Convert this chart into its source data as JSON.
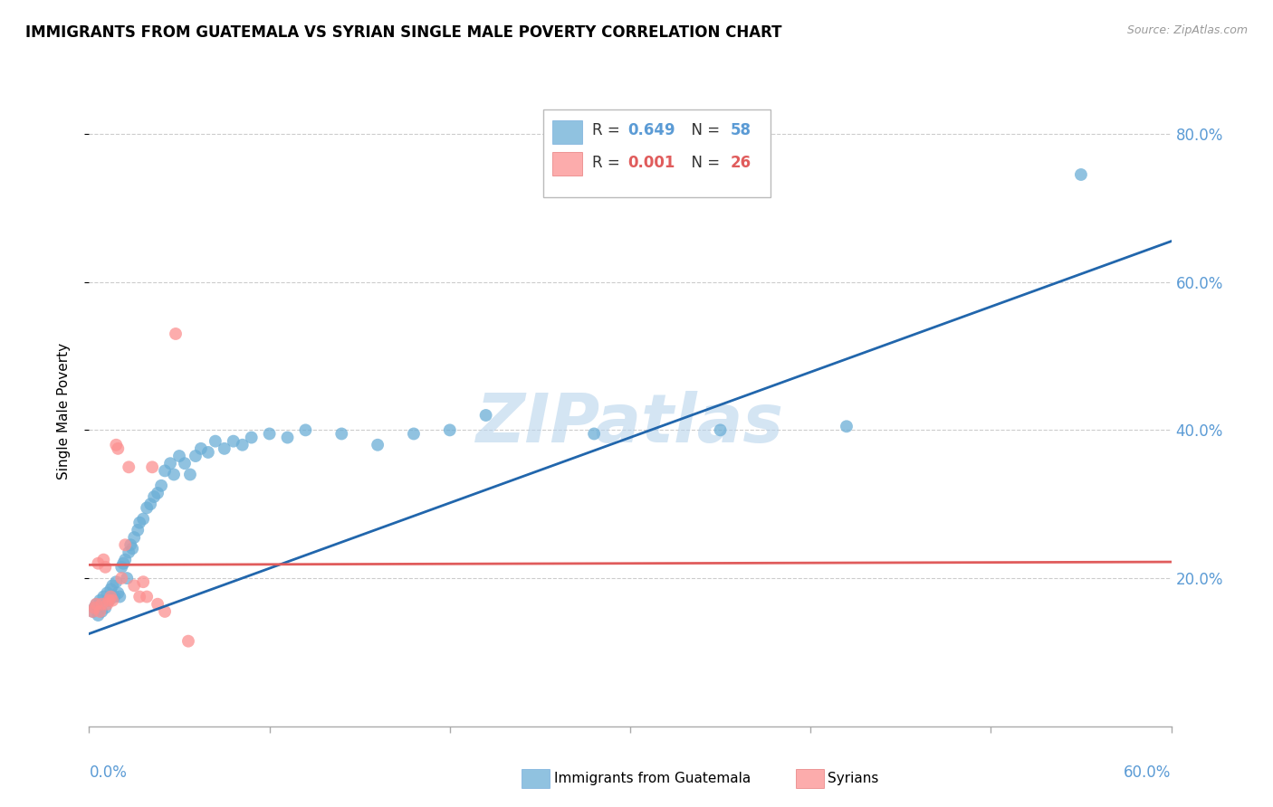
{
  "title": "IMMIGRANTS FROM GUATEMALA VS SYRIAN SINGLE MALE POVERTY CORRELATION CHART",
  "source": "Source: ZipAtlas.com",
  "ylabel": "Single Male Poverty",
  "xlim": [
    0.0,
    0.6
  ],
  "ylim": [
    0.0,
    0.85
  ],
  "ytick_values": [
    0.2,
    0.4,
    0.6,
    0.8
  ],
  "xtick_values": [
    0.0,
    0.1,
    0.2,
    0.3,
    0.4,
    0.5,
    0.6
  ],
  "legend_R_guatemala": "0.649",
  "legend_N_guatemala": "58",
  "legend_R_syrians": "0.001",
  "legend_N_syrians": "26",
  "color_guatemala": "#6baed6",
  "color_syrians": "#fc9090",
  "trendline_guatemala_color": "#2166ac",
  "trendline_syrians_color": "#e05c5c",
  "watermark": "ZIPatlas",
  "watermark_color": "#b8d4ec",
  "guatemala_x": [
    0.002,
    0.003,
    0.004,
    0.005,
    0.006,
    0.007,
    0.008,
    0.009,
    0.01,
    0.011,
    0.012,
    0.013,
    0.014,
    0.015,
    0.016,
    0.017,
    0.018,
    0.019,
    0.02,
    0.021,
    0.022,
    0.023,
    0.024,
    0.025,
    0.027,
    0.028,
    0.03,
    0.032,
    0.034,
    0.036,
    0.038,
    0.04,
    0.042,
    0.045,
    0.047,
    0.05,
    0.053,
    0.056,
    0.059,
    0.062,
    0.066,
    0.07,
    0.075,
    0.08,
    0.085,
    0.09,
    0.1,
    0.11,
    0.12,
    0.14,
    0.16,
    0.18,
    0.2,
    0.22,
    0.28,
    0.35,
    0.42,
    0.55
  ],
  "guatemala_y": [
    0.155,
    0.16,
    0.165,
    0.15,
    0.17,
    0.155,
    0.175,
    0.16,
    0.18,
    0.17,
    0.185,
    0.19,
    0.175,
    0.195,
    0.18,
    0.175,
    0.215,
    0.22,
    0.225,
    0.2,
    0.235,
    0.245,
    0.24,
    0.255,
    0.265,
    0.275,
    0.28,
    0.295,
    0.3,
    0.31,
    0.315,
    0.325,
    0.345,
    0.355,
    0.34,
    0.365,
    0.355,
    0.34,
    0.365,
    0.375,
    0.37,
    0.385,
    0.375,
    0.385,
    0.38,
    0.39,
    0.395,
    0.39,
    0.4,
    0.395,
    0.38,
    0.395,
    0.4,
    0.42,
    0.395,
    0.4,
    0.405,
    0.745
  ],
  "syrians_x": [
    0.002,
    0.003,
    0.004,
    0.005,
    0.006,
    0.007,
    0.008,
    0.009,
    0.01,
    0.011,
    0.012,
    0.013,
    0.015,
    0.016,
    0.018,
    0.02,
    0.022,
    0.025,
    0.028,
    0.03,
    0.032,
    0.035,
    0.038,
    0.042,
    0.048,
    0.055
  ],
  "syrians_y": [
    0.155,
    0.16,
    0.165,
    0.22,
    0.155,
    0.165,
    0.225,
    0.215,
    0.165,
    0.17,
    0.175,
    0.17,
    0.38,
    0.375,
    0.2,
    0.245,
    0.35,
    0.19,
    0.175,
    0.195,
    0.175,
    0.35,
    0.165,
    0.155,
    0.53,
    0.115
  ],
  "guatemala_trendline_x": [
    0.0,
    0.6
  ],
  "guatemala_trendline_y": [
    0.125,
    0.655
  ],
  "syrians_trendline_x": [
    0.0,
    0.6
  ],
  "syrians_trendline_y": [
    0.218,
    0.222
  ]
}
